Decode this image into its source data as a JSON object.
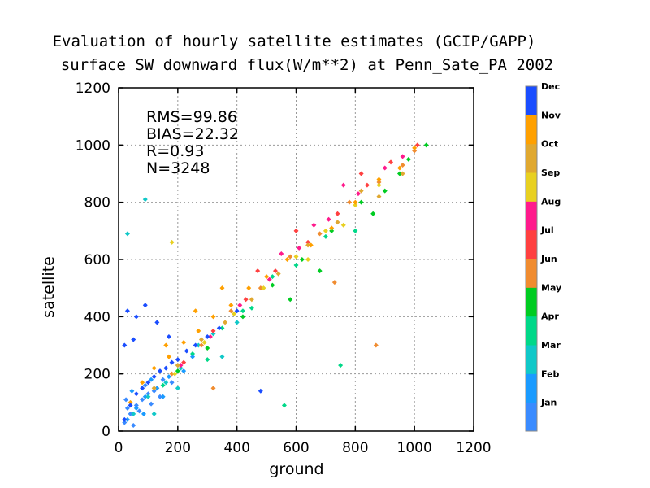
{
  "chart_data": {
    "type": "scatter",
    "title_line1": "Evaluation of hourly satellite estimates (GCIP/GAPP)",
    "title_line2": "surface SW downward flux(W/m**2) at Penn_Sate_PA 2002",
    "xlabel": "ground",
    "ylabel": "satellite",
    "xlim": [
      0,
      1200
    ],
    "ylim": [
      0,
      1200
    ],
    "x_ticks": [
      "0",
      "200",
      "400",
      "600",
      "800",
      "1000",
      "1200"
    ],
    "y_ticks": [
      "0",
      "200",
      "400",
      "600",
      "800",
      "1000",
      "1200"
    ],
    "grid": true,
    "stats": {
      "rms": "RMS=99.86",
      "bias": "BIAS=22.32",
      "r": "R=0.93",
      "n": "N=3248"
    },
    "colorbar": {
      "placement": "right",
      "labels": [
        "Jan",
        "Feb",
        "Mar",
        "Apr",
        "May",
        "Jun",
        "Jul",
        "Aug",
        "Sep",
        "Oct",
        "Nov",
        "Dec"
      ],
      "colors": [
        "#3a8bff",
        "#1a9bff",
        "#10c8c8",
        "#00d888",
        "#00cc22",
        "#f08c30",
        "#ff4040",
        "#ff1a8c",
        "#e8d020",
        "#e0a830",
        "#ffa000",
        "#1a4dff"
      ]
    },
    "series": [
      {
        "month": "Jan",
        "color": "#3a8bff",
        "points": [
          [
            20,
            30
          ],
          [
            40,
            60
          ],
          [
            60,
            90
          ],
          [
            80,
            110
          ],
          [
            100,
            130
          ],
          [
            30,
            80
          ],
          [
            50,
            20
          ],
          [
            120,
            140
          ],
          [
            150,
            180
          ],
          [
            70,
            70
          ],
          [
            90,
            160
          ],
          [
            25,
            110
          ],
          [
            140,
            120
          ],
          [
            180,
            170
          ],
          [
            110,
            95
          ]
        ]
      },
      {
        "month": "Feb",
        "color": "#1a9bff",
        "points": [
          [
            30,
            40
          ],
          [
            60,
            80
          ],
          [
            90,
            120
          ],
          [
            130,
            150
          ],
          [
            170,
            190
          ],
          [
            200,
            230
          ],
          [
            45,
            140
          ],
          [
            85,
            60
          ],
          [
            220,
            210
          ],
          [
            150,
            120
          ],
          [
            250,
            260
          ],
          [
            110,
            180
          ]
        ]
      },
      {
        "month": "Mar",
        "color": "#10c8c8",
        "points": [
          [
            50,
            60
          ],
          [
            100,
            120
          ],
          [
            160,
            170
          ],
          [
            210,
            220
          ],
          [
            270,
            300
          ],
          [
            320,
            340
          ],
          [
            120,
            60
          ],
          [
            200,
            150
          ],
          [
            30,
            690
          ],
          [
            400,
            380
          ],
          [
            350,
            260
          ],
          [
            90,
            810
          ]
        ]
      },
      {
        "month": "Apr",
        "color": "#00d888",
        "points": [
          [
            150,
            160
          ],
          [
            250,
            270
          ],
          [
            350,
            360
          ],
          [
            450,
            430
          ],
          [
            520,
            540
          ],
          [
            600,
            580
          ],
          [
            700,
            680
          ],
          [
            750,
            230
          ],
          [
            420,
            420
          ],
          [
            300,
            250
          ],
          [
            560,
            90
          ],
          [
            800,
            700
          ]
        ]
      },
      {
        "month": "May",
        "color": "#00cc22",
        "points": [
          [
            200,
            210
          ],
          [
            300,
            290
          ],
          [
            420,
            400
          ],
          [
            520,
            510
          ],
          [
            620,
            600
          ],
          [
            720,
            700
          ],
          [
            820,
            800
          ],
          [
            900,
            840
          ],
          [
            980,
            950
          ],
          [
            1040,
            1000
          ],
          [
            860,
            760
          ],
          [
            950,
            900
          ],
          [
            680,
            560
          ],
          [
            580,
            460
          ]
        ]
      },
      {
        "month": "Jun",
        "color": "#f08c30",
        "points": [
          [
            180,
            200
          ],
          [
            280,
            300
          ],
          [
            380,
            420
          ],
          [
            480,
            500
          ],
          [
            580,
            610
          ],
          [
            680,
            690
          ],
          [
            780,
            800
          ],
          [
            880,
            870
          ],
          [
            960,
            930
          ],
          [
            1000,
            980
          ],
          [
            870,
            300
          ],
          [
            730,
            520
          ],
          [
            320,
            150
          ]
        ]
      },
      {
        "month": "Jul",
        "color": "#ff4040",
        "points": [
          [
            220,
            240
          ],
          [
            320,
            350
          ],
          [
            430,
            460
          ],
          [
            530,
            560
          ],
          [
            640,
            660
          ],
          [
            740,
            760
          ],
          [
            840,
            860
          ],
          [
            920,
            940
          ],
          [
            1010,
            1000
          ],
          [
            600,
            700
          ],
          [
            470,
            560
          ],
          [
            820,
            900
          ]
        ]
      },
      {
        "month": "Aug",
        "color": "#ff1a8c",
        "points": [
          [
            210,
            230
          ],
          [
            310,
            330
          ],
          [
            410,
            440
          ],
          [
            510,
            530
          ],
          [
            610,
            640
          ],
          [
            710,
            740
          ],
          [
            810,
            830
          ],
          [
            900,
            920
          ],
          [
            960,
            960
          ],
          [
            550,
            620
          ],
          [
            660,
            720
          ],
          [
            760,
            860
          ]
        ]
      },
      {
        "month": "Sep",
        "color": "#e8d020",
        "points": [
          [
            190,
            200
          ],
          [
            290,
            310
          ],
          [
            390,
            410
          ],
          [
            490,
            500
          ],
          [
            600,
            610
          ],
          [
            700,
            700
          ],
          [
            800,
            790
          ],
          [
            880,
            860
          ],
          [
            180,
            660
          ],
          [
            640,
            600
          ],
          [
            760,
            720
          ]
        ]
      },
      {
        "month": "Oct",
        "color": "#e0a830",
        "points": [
          [
            120,
            150
          ],
          [
            200,
            230
          ],
          [
            280,
            320
          ],
          [
            360,
            380
          ],
          [
            450,
            460
          ],
          [
            540,
            550
          ],
          [
            640,
            650
          ],
          [
            740,
            730
          ],
          [
            820,
            840
          ],
          [
            880,
            820
          ],
          [
            960,
            900
          ]
        ]
      },
      {
        "month": "Nov",
        "color": "#ffa000",
        "points": [
          [
            40,
            100
          ],
          [
            80,
            170
          ],
          [
            120,
            220
          ],
          [
            170,
            260
          ],
          [
            220,
            310
          ],
          [
            270,
            350
          ],
          [
            320,
            400
          ],
          [
            380,
            440
          ],
          [
            440,
            500
          ],
          [
            500,
            540
          ],
          [
            570,
            600
          ],
          [
            650,
            650
          ],
          [
            720,
            710
          ],
          [
            800,
            800
          ],
          [
            880,
            880
          ],
          [
            950,
            920
          ],
          [
            1000,
            990
          ],
          [
            160,
            300
          ],
          [
            260,
            420
          ],
          [
            350,
            500
          ]
        ]
      },
      {
        "month": "Dec",
        "color": "#1a4dff",
        "points": [
          [
            20,
            40
          ],
          [
            40,
            90
          ],
          [
            60,
            130
          ],
          [
            80,
            150
          ],
          [
            100,
            170
          ],
          [
            120,
            190
          ],
          [
            140,
            210
          ],
          [
            160,
            220
          ],
          [
            180,
            240
          ],
          [
            200,
            250
          ],
          [
            230,
            280
          ],
          [
            260,
            300
          ],
          [
            300,
            330
          ],
          [
            340,
            360
          ],
          [
            400,
            420
          ],
          [
            30,
            420
          ],
          [
            60,
            400
          ],
          [
            90,
            440
          ],
          [
            130,
            380
          ],
          [
            50,
            320
          ],
          [
            480,
            140
          ],
          [
            20,
            300
          ],
          [
            170,
            330
          ]
        ]
      }
    ]
  }
}
